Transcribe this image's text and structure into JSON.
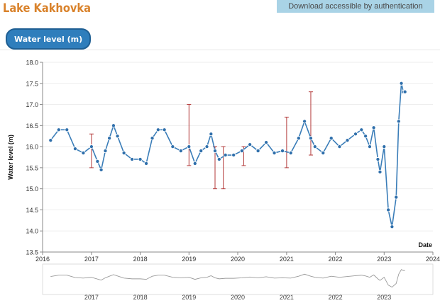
{
  "page": {
    "title": "Lake Kakhovka",
    "download_label": "Download accessible by authentication",
    "tab_label": "Water level (m)"
  },
  "colors": {
    "title": "#d9822b",
    "tab": "#2f7ebc",
    "series_line": "#3a7db8",
    "marker_fill": "#2f6fab",
    "marker_stroke": "#ffffff",
    "error_bar": "#b33a3a",
    "overview_line": "#9a9a9a"
  },
  "chart_data": {
    "type": "line",
    "title": "",
    "xlabel": "Date",
    "ylabel": "Water level (m)",
    "xlim": [
      "2016-01-01",
      "2024-01-01"
    ],
    "ylim": [
      13.5,
      18.0
    ],
    "y_ticks": [
      "13.5",
      "14.0",
      "14.5",
      "15.0",
      "15.5",
      "16.0",
      "16.5",
      "17.0",
      "17.5",
      "18.0"
    ],
    "x_ticks": [
      "2016",
      "2017",
      "2018",
      "2019",
      "2020",
      "2021",
      "2022",
      "2023",
      "2024"
    ],
    "overview_ticks": [
      "2017",
      "2018",
      "2019",
      "2020",
      "2021",
      "2022",
      "2023"
    ],
    "grid": "horizontal",
    "series": [
      {
        "x": [
          "2016-03-01",
          "2016-05-01",
          "2016-07-01",
          "2016-09-01",
          "2016-11-01",
          "2017-01-01",
          "2017-02-15",
          "2017-03-15",
          "2017-04-15",
          "2017-05-15",
          "2017-06-15",
          "2017-07-15",
          "2017-09-01",
          "2017-11-01",
          "2018-01-01",
          "2018-02-15",
          "2018-04-01",
          "2018-05-15",
          "2018-07-01",
          "2018-09-01",
          "2018-11-01",
          "2019-01-01",
          "2019-02-15",
          "2019-04-01",
          "2019-05-15",
          "2019-06-15",
          "2019-07-15",
          "2019-08-15",
          "2019-10-01",
          "2019-12-01",
          "2020-02-01",
          "2020-04-01",
          "2020-06-01",
          "2020-08-01",
          "2020-10-01",
          "2020-12-01",
          "2021-02-01",
          "2021-04-01",
          "2021-05-15",
          "2021-07-01",
          "2021-08-01",
          "2021-10-01",
          "2021-12-01",
          "2022-02-01",
          "2022-04-01",
          "2022-06-01",
          "2022-07-15",
          "2022-08-15",
          "2022-09-15",
          "2022-10-15",
          "2022-11-15",
          "2022-12-01",
          "2023-01-01",
          "2023-02-01",
          "2023-03-01",
          "2023-04-01",
          "2023-04-20",
          "2023-05-10",
          "2023-05-25",
          "2023-06-06"
        ],
        "y": [
          16.15,
          16.4,
          16.4,
          15.95,
          15.85,
          16.0,
          15.65,
          15.45,
          15.9,
          16.2,
          16.5,
          16.25,
          15.85,
          15.7,
          15.7,
          15.6,
          16.2,
          16.4,
          16.4,
          16.0,
          15.9,
          16.0,
          15.6,
          15.9,
          16.0,
          16.3,
          15.9,
          15.7,
          15.8,
          15.8,
          15.9,
          16.05,
          15.9,
          16.1,
          15.85,
          15.9,
          15.85,
          16.2,
          16.6,
          16.2,
          16.0,
          15.85,
          16.2,
          16.0,
          16.15,
          16.3,
          16.4,
          16.25,
          16.0,
          16.45,
          15.7,
          15.4,
          16.0,
          14.5,
          14.1,
          14.8,
          16.6,
          17.5,
          17.3,
          17.3
        ]
      }
    ],
    "error_bars": [
      {
        "x": "2017-01-01",
        "low": 15.5,
        "high": 16.3
      },
      {
        "x": "2019-01-01",
        "low": 15.55,
        "high": 17.0
      },
      {
        "x": "2019-07-15",
        "low": 15.0,
        "high": 16.0
      },
      {
        "x": "2019-09-15",
        "low": 15.0,
        "high": 16.0
      },
      {
        "x": "2021-01-01",
        "low": 15.5,
        "high": 16.7
      },
      {
        "x": "2021-07-01",
        "low": 15.8,
        "high": 17.3
      },
      {
        "x": "2020-02-15",
        "low": 15.55,
        "high": 16.0
      }
    ]
  }
}
